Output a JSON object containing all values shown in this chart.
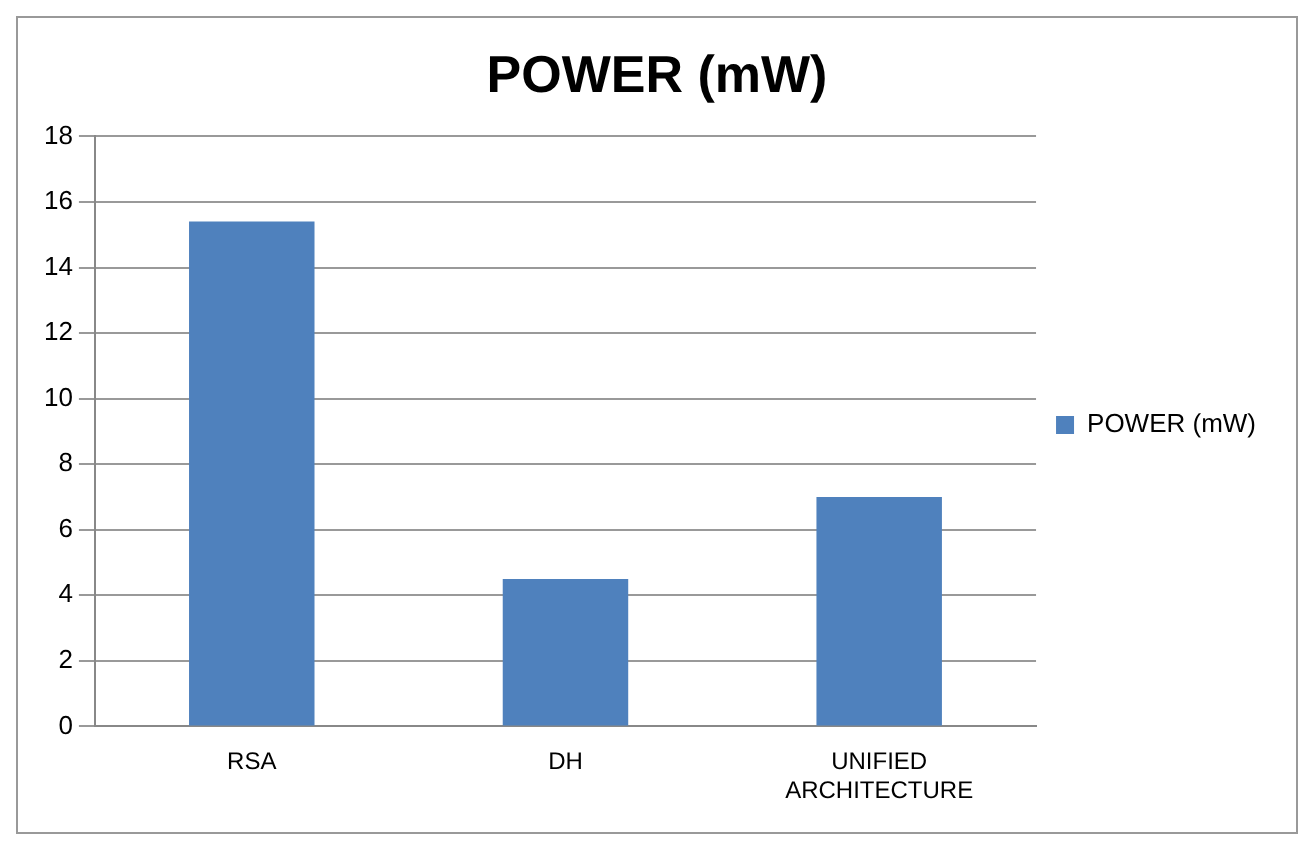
{
  "chart_data": {
    "type": "bar",
    "title": "POWER (mW)",
    "categories": [
      "RSA",
      "DH",
      "UNIFIED ARCHITECTURE"
    ],
    "series": [
      {
        "name": "POWER (mW)",
        "color": "#4f81bd",
        "values": [
          15.4,
          4.5,
          7.0
        ]
      }
    ],
    "ylim": [
      0,
      18
    ],
    "yticks": [
      0,
      2,
      4,
      6,
      8,
      10,
      12,
      14,
      16,
      18
    ],
    "grid": "y",
    "legend": "right"
  }
}
